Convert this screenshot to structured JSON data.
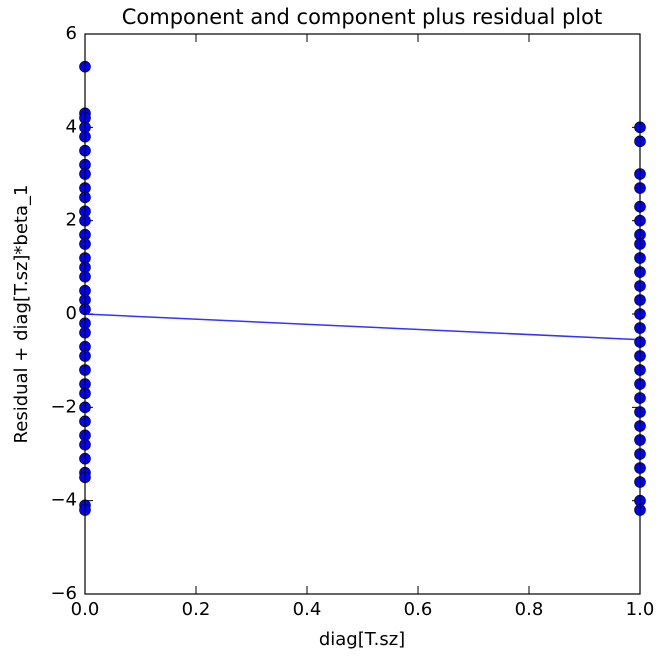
{
  "chart_data": {
    "type": "scatter",
    "title": "Component and component plus residual plot",
    "x_label": "diag[T.sz]",
    "y_label": "Residual + diag[T.sz]*beta_1",
    "xlim": [
      0,
      1
    ],
    "ylim": [
      -6,
      6
    ],
    "xticks": [
      {
        "value": 0,
        "label": "0.0"
      },
      0.2,
      0.4,
      0.6,
      0.8,
      {
        "value": 1,
        "label": "1.0"
      }
    ],
    "yticks": [
      {
        "value": -6,
        "label": "−6"
      },
      {
        "value": -4,
        "label": "−4"
      },
      {
        "value": -2,
        "label": "−2"
      },
      0,
      2,
      4,
      6
    ],
    "series": [
      {
        "color": "#0000ff",
        "x": [
          0,
          0,
          0,
          0,
          0,
          0,
          0,
          0,
          0,
          0,
          0,
          0,
          0,
          0,
          0,
          0,
          0,
          0,
          0,
          0,
          0,
          0,
          0,
          0,
          0,
          0,
          0,
          0,
          0,
          0,
          0,
          0,
          0,
          0,
          0,
          0,
          1,
          1,
          1,
          1,
          1,
          1,
          1,
          1,
          1,
          1,
          1,
          1,
          1,
          1,
          1,
          1,
          1,
          1,
          1,
          1,
          1,
          1,
          1,
          1,
          1,
          1,
          1
        ],
        "values": [
          5.3,
          4.3,
          4.2,
          4.0,
          3.8,
          3.5,
          3.2,
          3.0,
          2.7,
          2.5,
          2.2,
          2.0,
          1.7,
          1.5,
          1.2,
          1.0,
          0.8,
          0.5,
          0.3,
          0.1,
          -0.2,
          -0.4,
          -0.7,
          -0.9,
          -1.2,
          -1.5,
          -1.7,
          -2.0,
          -2.3,
          -2.6,
          -2.8,
          -3.1,
          -3.4,
          -3.5,
          -4.1,
          -4.2,
          4.0,
          3.7,
          3.0,
          2.7,
          2.3,
          2.0,
          1.7,
          1.5,
          1.2,
          0.9,
          0.6,
          0.3,
          0.0,
          -0.3,
          -0.6,
          -0.9,
          -1.2,
          -1.5,
          -1.8,
          -2.1,
          -2.4,
          -2.7,
          -3.0,
          -3.3,
          -3.6,
          -4.0,
          -4.2
        ]
      },
      {
        "type": "line",
        "color": "#0000ff",
        "x": [
          0,
          1
        ],
        "values": [
          0,
          -0.55
        ]
      }
    ]
  }
}
